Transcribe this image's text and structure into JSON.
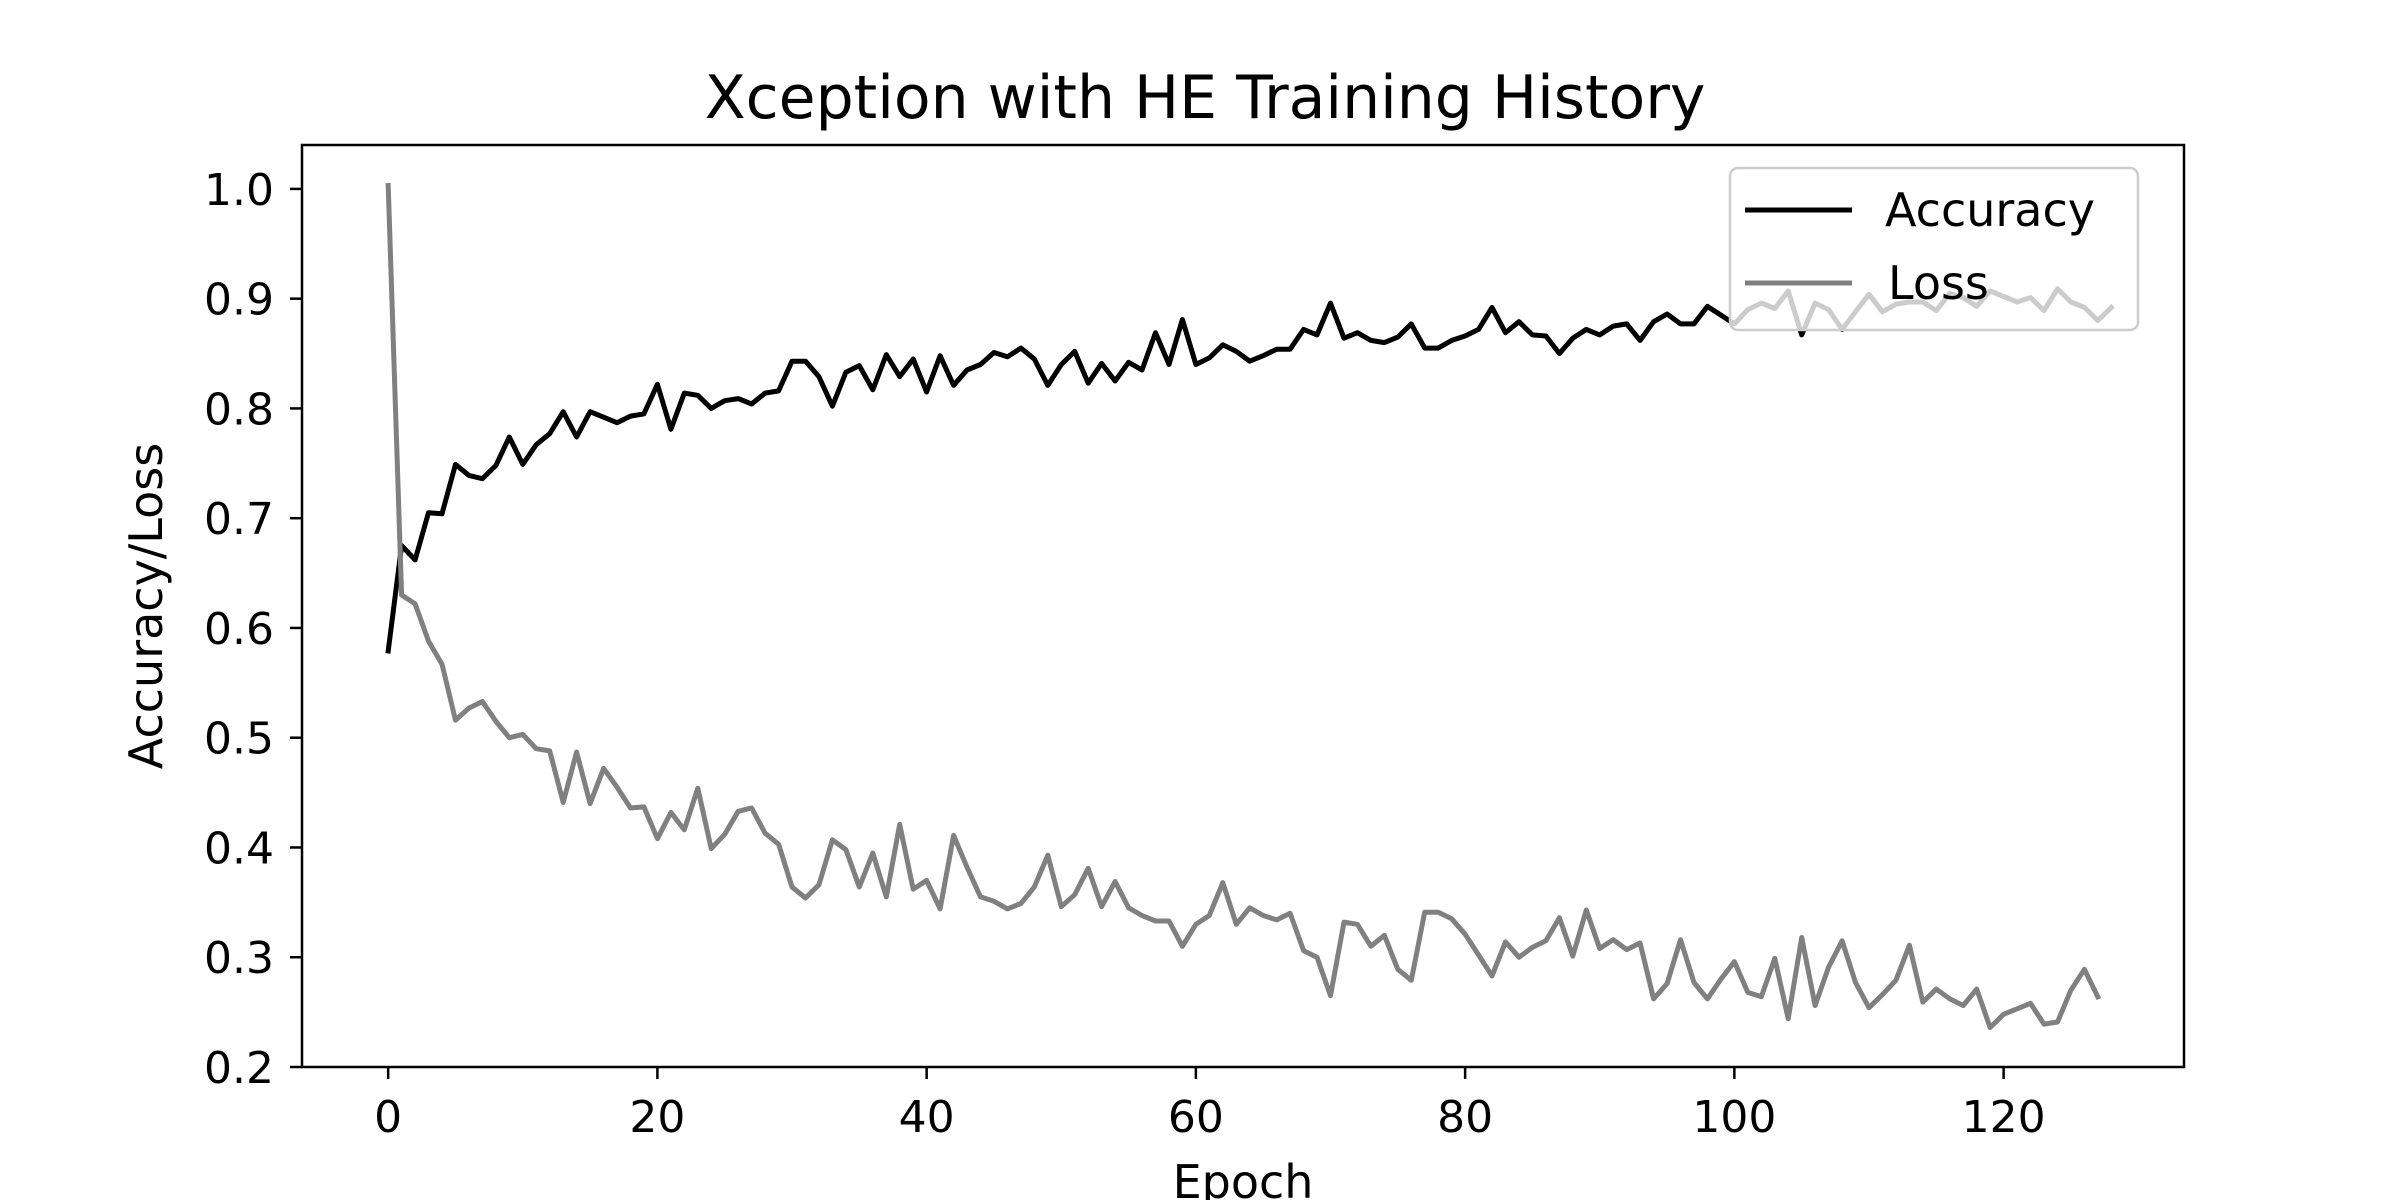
{
  "chart_data": {
    "type": "line",
    "title": "Xception with HE Training History",
    "xlabel": "Epoch",
    "ylabel": "Accuracy/Loss",
    "xlim": [
      -6.4,
      133.4
    ],
    "ylim": [
      0.2,
      1.04
    ],
    "x_ticks": [
      0,
      20,
      40,
      60,
      80,
      100,
      120
    ],
    "y_ticks": [
      0.2,
      0.3,
      0.4,
      0.5,
      0.6,
      0.7,
      0.8,
      0.9,
      1.0
    ],
    "x_tick_labels": [
      "0",
      "20",
      "40",
      "60",
      "80",
      "100",
      "120"
    ],
    "y_tick_labels": [
      "0.2",
      "0.3",
      "0.4",
      "0.5",
      "0.6",
      "0.7",
      "0.8",
      "0.9",
      "1.0"
    ],
    "grid": false,
    "legend_position": "upper-right",
    "series": [
      {
        "name": "Accuracy",
        "color": "#000000",
        "values": [
          0.579,
          0.675,
          0.662,
          0.705,
          0.704,
          0.749,
          0.739,
          0.736,
          0.748,
          0.774,
          0.749,
          0.767,
          0.777,
          0.797,
          0.774,
          0.797,
          0.792,
          0.787,
          0.793,
          0.795,
          0.822,
          0.781,
          0.814,
          0.812,
          0.8,
          0.807,
          0.809,
          0.804,
          0.814,
          0.816,
          0.843,
          0.843,
          0.829,
          0.802,
          0.833,
          0.839,
          0.817,
          0.849,
          0.829,
          0.845,
          0.815,
          0.848,
          0.821,
          0.835,
          0.84,
          0.851,
          0.847,
          0.855,
          0.845,
          0.821,
          0.84,
          0.852,
          0.823,
          0.841,
          0.825,
          0.842,
          0.835,
          0.869,
          0.84,
          0.881,
          0.84,
          0.846,
          0.858,
          0.852,
          0.843,
          0.848,
          0.854,
          0.854,
          0.872,
          0.867,
          0.896,
          0.864,
          0.869,
          0.862,
          0.86,
          0.865,
          0.877,
          0.855,
          0.855,
          0.862,
          0.866,
          0.872,
          0.892,
          0.869,
          0.879,
          0.867,
          0.866,
          0.85,
          0.864,
          0.872,
          0.867,
          0.875,
          0.877,
          0.862,
          0.879,
          0.886,
          0.877,
          0.877,
          0.893,
          0.885,
          0.877,
          0.89,
          0.896,
          0.891,
          0.907,
          0.867,
          0.896,
          0.89,
          0.872,
          0.888,
          0.904,
          0.888,
          0.895,
          0.897,
          0.897,
          0.889,
          0.905,
          0.901,
          0.893,
          0.907,
          0.902,
          0.897,
          0.901,
          0.889,
          0.909,
          0.897,
          0.892,
          0.88,
          0.892
        ]
      },
      {
        "name": "Loss",
        "color": "#808080",
        "values": [
          1.003,
          0.63,
          0.622,
          0.588,
          0.567,
          0.516,
          0.527,
          0.533,
          0.515,
          0.5,
          0.503,
          0.49,
          0.488,
          0.441,
          0.487,
          0.44,
          0.472,
          0.455,
          0.436,
          0.437,
          0.408,
          0.432,
          0.416,
          0.454,
          0.399,
          0.412,
          0.433,
          0.436,
          0.413,
          0.403,
          0.364,
          0.354,
          0.366,
          0.407,
          0.398,
          0.364,
          0.395,
          0.355,
          0.421,
          0.362,
          0.37,
          0.344,
          0.411,
          0.382,
          0.355,
          0.351,
          0.344,
          0.349,
          0.364,
          0.393,
          0.346,
          0.357,
          0.381,
          0.346,
          0.369,
          0.345,
          0.338,
          0.333,
          0.333,
          0.31,
          0.33,
          0.338,
          0.368,
          0.33,
          0.345,
          0.338,
          0.334,
          0.34,
          0.306,
          0.3,
          0.265,
          0.332,
          0.33,
          0.31,
          0.32,
          0.289,
          0.279,
          0.341,
          0.341,
          0.335,
          0.321,
          0.302,
          0.283,
          0.314,
          0.3,
          0.309,
          0.315,
          0.336,
          0.301,
          0.343,
          0.308,
          0.316,
          0.307,
          0.313,
          0.262,
          0.276,
          0.316,
          0.277,
          0.262,
          0.28,
          0.296,
          0.268,
          0.264,
          0.299,
          0.244,
          0.318,
          0.256,
          0.291,
          0.315,
          0.277,
          0.254,
          0.266,
          0.279,
          0.311,
          0.259,
          0.271,
          0.262,
          0.256,
          0.271,
          0.236,
          0.248,
          0.253,
          0.258,
          0.239,
          0.241,
          0.27,
          0.289,
          0.264
        ]
      }
    ]
  }
}
